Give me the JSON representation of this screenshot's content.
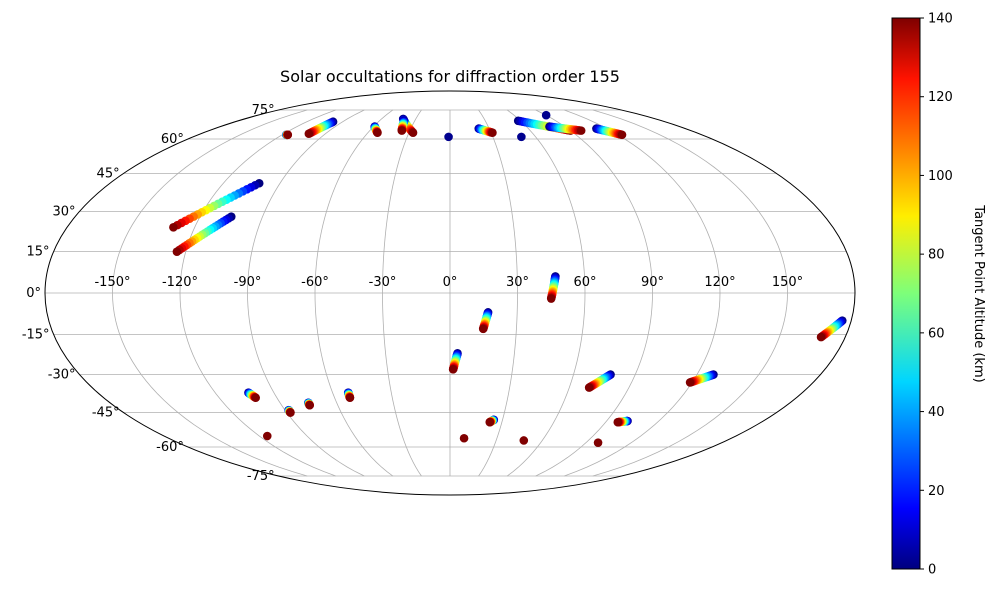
{
  "chart_data": {
    "type": "scatter",
    "projection": "mollweide",
    "title": "Solar occultations for diffraction order 155",
    "grid": true,
    "x_ticks": [
      "-150°",
      "-120°",
      "-90°",
      "-60°",
      "-30°",
      "0°",
      "30°",
      "60°",
      "90°",
      "120°",
      "150°"
    ],
    "y_ticks": [
      "75°",
      "60°",
      "45°",
      "30°",
      "15°",
      "0°",
      "-15°",
      "-30°",
      "-45°",
      "-60°",
      "-75°"
    ],
    "colorbar": {
      "label": "Tangent Point Altitude (km)",
      "colormap": "jet",
      "range": [
        0,
        140
      ],
      "ticks": [
        "0",
        "20",
        "40",
        "60",
        "80",
        "100",
        "120",
        "140"
      ]
    },
    "tracks": [
      {
        "lon_start": -101.0,
        "lat_start": 41.0,
        "lon_end": -130.0,
        "lat_end": 24.0
      },
      {
        "lon_start": -105.0,
        "lat_start": 28.0,
        "lon_end": -124.0,
        "lat_end": 15.0
      },
      {
        "lon_start": 47.0,
        "lat_start": 6.0,
        "lon_end": 45.0,
        "lat_end": -2.0
      },
      {
        "lon_start": 17.0,
        "lat_start": -7.0,
        "lon_end": 15.0,
        "lat_end": -13.0
      },
      {
        "lon_start": 3.5,
        "lat_start": -22.0,
        "lon_end": 1.5,
        "lat_end": -28.0
      },
      {
        "lon_start": 176.0,
        "lat_start": -10.0,
        "lon_end": 169.0,
        "lat_end": -16.0
      },
      {
        "lon_start": 78.0,
        "lat_start": -30.0,
        "lon_end": 70.0,
        "lat_end": -35.0
      },
      {
        "lon_start": 128.0,
        "lat_start": -30.0,
        "lon_end": 119.0,
        "lat_end": -33.0
      },
      {
        "lon_start": -103.0,
        "lat_start": -37.0,
        "lon_end": -101.0,
        "lat_end": -39.0
      },
      {
        "lon_start": -52.0,
        "lat_start": -37.0,
        "lon_end": -52.0,
        "lat_end": -39.0
      },
      {
        "lon_start": -75.0,
        "lat_start": -41.0,
        "lon_end": -75.0,
        "lat_end": -42.0
      },
      {
        "lon_start": -88.0,
        "lat_start": -44.0,
        "lon_end": -88.0,
        "lat_end": -45.0
      },
      {
        "lon_start": 25.0,
        "lat_start": -48.0,
        "lon_end": 23.0,
        "lat_end": -49.0
      },
      {
        "lon_start": 102.0,
        "lat_start": -48.5,
        "lon_end": 97.0,
        "lat_end": -49.0
      },
      {
        "lon_start": -117.0,
        "lat_start": 62.0,
        "lon_end": -116.0,
        "lat_end": 62.0
      },
      {
        "lon_start": -98.0,
        "lat_start": 68.5,
        "lon_end": -102.0,
        "lat_end": 62.5
      },
      {
        "lon_start": -59.0,
        "lat_start": 66.0,
        "lon_end": -53.0,
        "lat_end": 63.0
      },
      {
        "lon_start": -41.0,
        "lat_start": 70.0,
        "lon_end": -27.0,
        "lat_end": 63.0
      },
      {
        "lon_start": -39.0,
        "lat_start": 69.0,
        "lon_end": -36.0,
        "lat_end": 64.0
      },
      {
        "lon_start": 22.0,
        "lat_start": 65.0,
        "lon_end": 31.0,
        "lat_end": 63.0
      },
      {
        "lon_start": 58.0,
        "lat_start": 69.0,
        "lon_end": 90.0,
        "lat_end": 64.0
      },
      {
        "lon_start": 78.0,
        "lat_start": 66.0,
        "lon_end": 98.0,
        "lat_end": 64.0
      },
      {
        "lon_start": 112.0,
        "lat_start": 65.0,
        "lon_end": 123.0,
        "lat_end": 62.0
      }
    ],
    "points": [
      {
        "lon": -1.0,
        "lat": 61.0,
        "alt": 2
      },
      {
        "lon": 50.0,
        "lat": 61.0,
        "alt": 2
      },
      {
        "lon": 90.0,
        "lat": 72.0,
        "alt": 2
      },
      {
        "lon": -115.0,
        "lat": -55.0,
        "alt": 140
      },
      {
        "lon": 9.0,
        "lat": -56.0,
        "alt": 140
      },
      {
        "lon": 48.0,
        "lat": -57.0,
        "alt": 140
      },
      {
        "lon": 98.0,
        "lat": -58.0,
        "alt": 140
      }
    ]
  }
}
